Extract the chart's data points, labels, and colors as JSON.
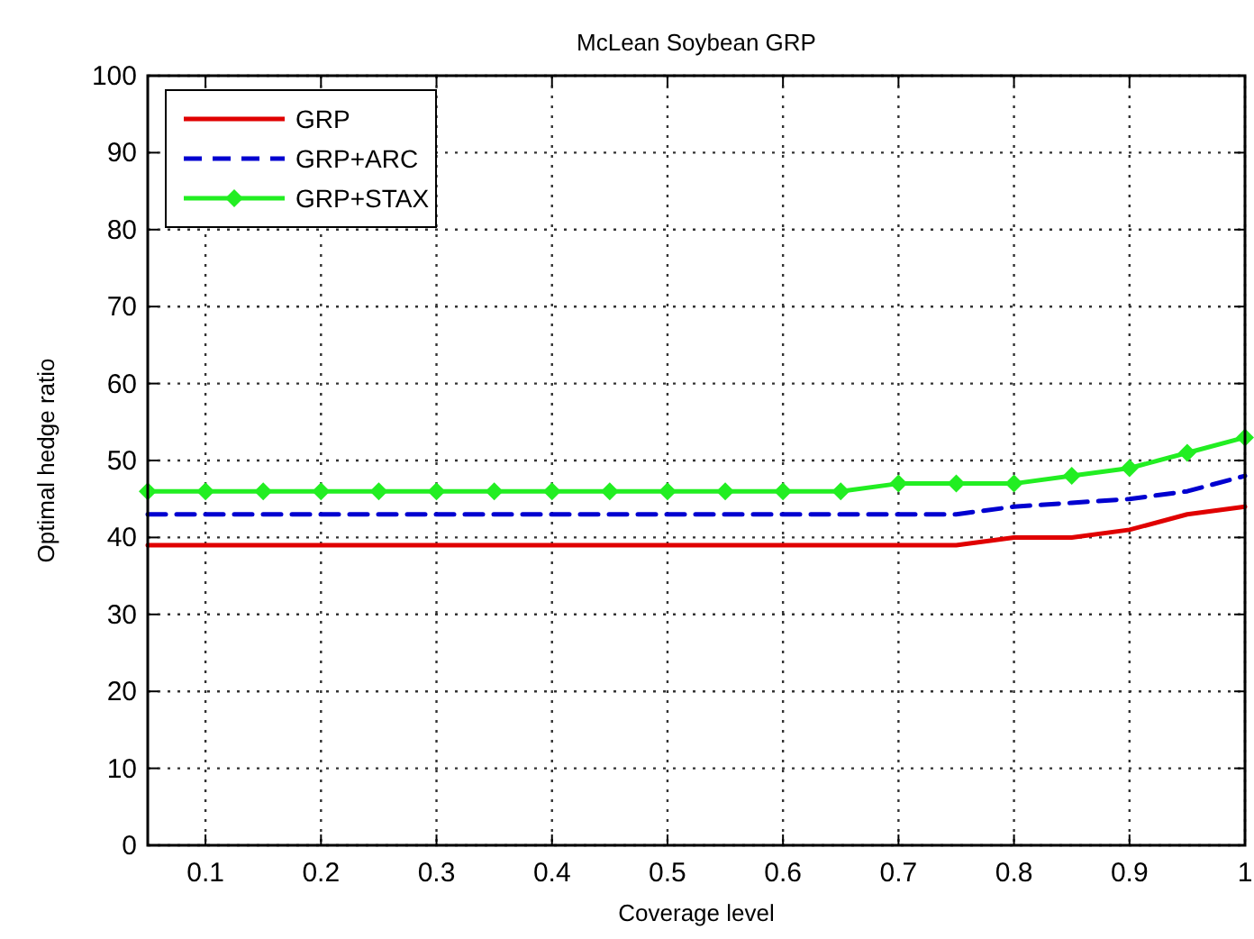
{
  "chart_data": {
    "type": "line",
    "title": "McLean Soybean  GRP",
    "xlabel": "Coverage level",
    "ylabel": "Optimal hedge ratio",
    "x": [
      0.05,
      0.1,
      0.15,
      0.2,
      0.25,
      0.3,
      0.35,
      0.4,
      0.45,
      0.5,
      0.55,
      0.6,
      0.65,
      0.7,
      0.75,
      0.8,
      0.85,
      0.9,
      0.95,
      1
    ],
    "xlim": [
      0.05,
      1
    ],
    "xticks": [
      0.1,
      0.2,
      0.3,
      0.4,
      0.5,
      0.6,
      0.7,
      0.8,
      0.9,
      1
    ],
    "ylim": [
      0,
      100
    ],
    "yticks": [
      0,
      10,
      20,
      30,
      40,
      50,
      60,
      70,
      80,
      90,
      100
    ],
    "grid": true,
    "legend": "top left",
    "series": [
      {
        "name": "GRP",
        "color": "#e00000",
        "line_style": "solid",
        "marker": "none",
        "values": [
          39,
          39,
          39,
          39,
          39,
          39,
          39,
          39,
          39,
          39,
          39,
          39,
          39,
          39,
          39,
          40,
          40,
          41,
          43,
          44
        ]
      },
      {
        "name": "GRP+ARC",
        "color": "#0000d0",
        "line_style": "dashed",
        "marker": "none",
        "values": [
          43,
          43,
          43,
          43,
          43,
          43,
          43,
          43,
          43,
          43,
          43,
          43,
          43,
          43,
          43,
          44,
          44.5,
          45,
          46,
          48
        ]
      },
      {
        "name": "GRP+STAX",
        "color": "#22ee22",
        "line_style": "solid",
        "marker": "diamond",
        "values": [
          46,
          46,
          46,
          46,
          46,
          46,
          46,
          46,
          46,
          46,
          46,
          46,
          46,
          47,
          47,
          47,
          48,
          49,
          51,
          53
        ]
      }
    ]
  }
}
